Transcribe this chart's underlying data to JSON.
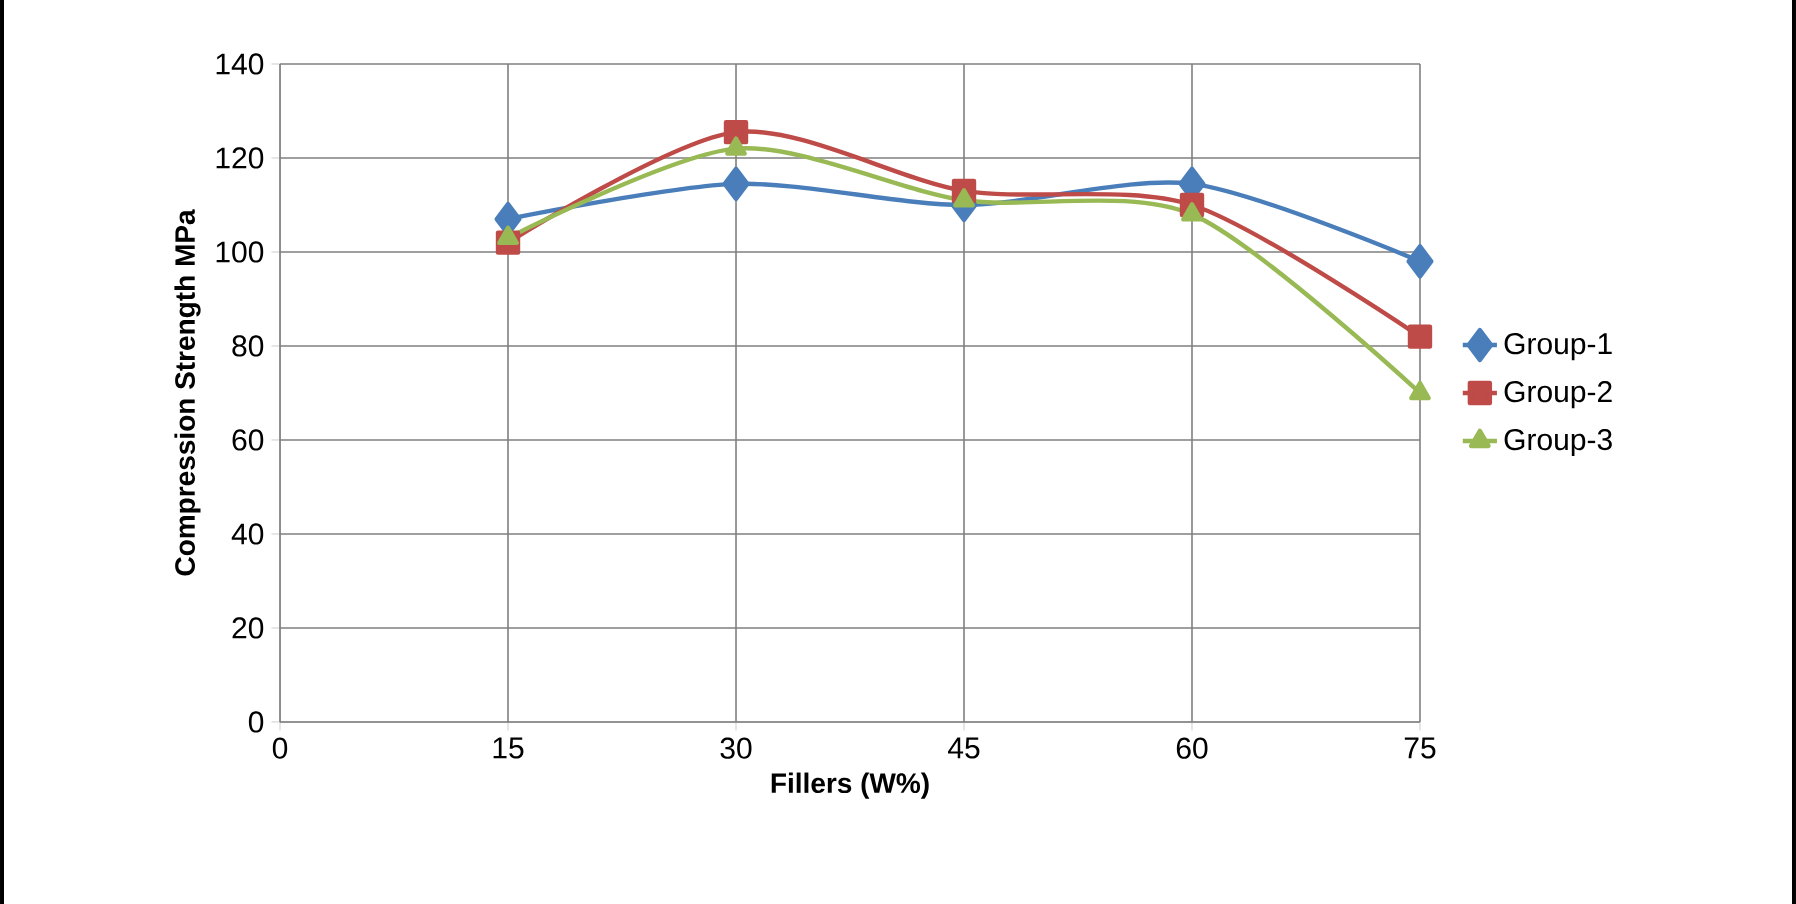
{
  "chart_data": {
    "type": "line",
    "xlabel": "Fillers (W%)",
    "ylabel": "Compression Strength MPa",
    "x": [
      15,
      30,
      45,
      60,
      75
    ],
    "series": [
      {
        "name": "Group-1",
        "color": "#4a7ebb",
        "marker": "diamond",
        "values": [
          107,
          114.5,
          110,
          114.5,
          98
        ]
      },
      {
        "name": "Group-2",
        "color": "#be4b48",
        "marker": "square",
        "values": [
          102,
          125.5,
          113,
          110,
          82
        ]
      },
      {
        "name": "Group-3",
        "color": "#98b954",
        "marker": "triangle",
        "values": [
          103,
          122,
          111,
          108,
          70
        ]
      }
    ],
    "xlim": [
      0,
      75
    ],
    "xticks": [
      0,
      15,
      30,
      45,
      60,
      75
    ],
    "ylim": [
      0,
      140
    ],
    "yticks": [
      0,
      20,
      40,
      60,
      80,
      100,
      120,
      140
    ],
    "grid": true,
    "legend": "right",
    "line_style": "solid"
  }
}
